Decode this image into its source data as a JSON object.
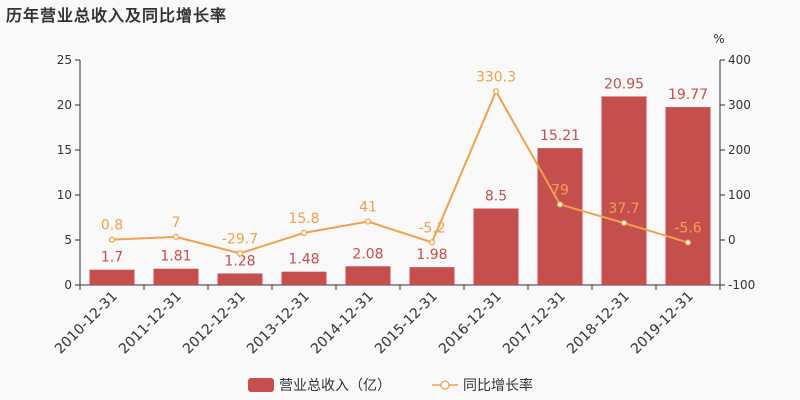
{
  "chart_data": {
    "type": "bar",
    "title": "历年营业总收入及同比增长率",
    "categories": [
      "2010-12-31",
      "2011-12-31",
      "2012-12-31",
      "2013-12-31",
      "2014-12-31",
      "2015-12-31",
      "2016-12-31",
      "2017-12-31",
      "2018-12-31",
      "2019-12-31"
    ],
    "series": [
      {
        "name": "营业总收入（亿）",
        "type": "bar",
        "axis": "left",
        "color": "#c54f4d",
        "values": [
          1.7,
          1.81,
          1.28,
          1.48,
          2.08,
          1.98,
          8.5,
          15.21,
          20.95,
          19.77
        ]
      },
      {
        "name": "同比增长率",
        "type": "line",
        "axis": "right",
        "color": "#f2a04d",
        "values": [
          0.8,
          7,
          -29.7,
          15.8,
          41,
          -5.2,
          330.3,
          79,
          37.7,
          -5.6
        ]
      }
    ],
    "ylim_left": [
      0,
      25
    ],
    "yticks_left": [
      0,
      5,
      10,
      15,
      20,
      25
    ],
    "ylim_right": [
      -100,
      400
    ],
    "yticks_right": [
      -100,
      0,
      100,
      200,
      300,
      400
    ],
    "ylabel_right": "%",
    "grid": false,
    "legend": "bottom-center"
  }
}
